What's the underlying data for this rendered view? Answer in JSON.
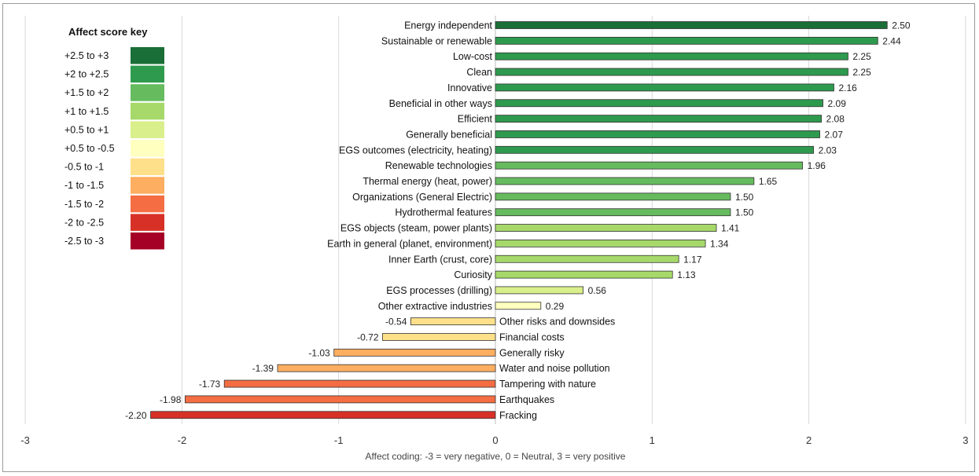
{
  "chart_data": {
    "type": "bar",
    "orientation": "horizontal",
    "xlabel": "Affect coding: -3 = very negative, 0 = Neutral, 3 = very positive",
    "xlim": [
      -3,
      3
    ],
    "xticks": [
      "-3",
      "-2",
      "-1",
      "0",
      "1",
      "2",
      "3"
    ],
    "grid": true,
    "categories": [
      "Energy independent",
      "Sustainable or renewable",
      "Low-cost",
      "Clean",
      "Innovative",
      "Beneficial in other ways",
      "Efficient",
      "Generally beneficial",
      "EGS outcomes (electricity, heating)",
      "Renewable technologies",
      "Thermal energy (heat, power)",
      "Organizations (General Electric)",
      "Hydrothermal features",
      "EGS objects (steam, power plants)",
      "Earth in general (planet, environment)",
      "Inner Earth (crust, core)",
      "Curiosity",
      "EGS processes (drilling)",
      "Other extractive industries",
      "Other risks and downsides",
      "Financial costs",
      "Generally risky",
      "Water and noise pollution",
      "Tampering with nature",
      "Earthquakes",
      "Fracking"
    ],
    "values": [
      2.5,
      2.44,
      2.25,
      2.25,
      2.16,
      2.09,
      2.08,
      2.07,
      2.03,
      1.96,
      1.65,
      1.5,
      1.5,
      1.41,
      1.34,
      1.17,
      1.13,
      0.56,
      0.29,
      -0.54,
      -0.72,
      -1.03,
      -1.39,
      -1.73,
      -1.98,
      -2.2
    ],
    "value_labels": [
      "2.50",
      "2.44",
      "2.25",
      "2.25",
      "2.16",
      "2.09",
      "2.08",
      "2.07",
      "2.03",
      "1.96",
      "1.65",
      "1.50",
      "1.50",
      "1.41",
      "1.34",
      "1.17",
      "1.13",
      "0.56",
      "0.29",
      "-0.54",
      "-0.72",
      "-1.03",
      "-1.39",
      "-1.73",
      "-1.98",
      "-2.20"
    ],
    "legend": {
      "title": "Affect score key",
      "placement": "top-left",
      "items": [
        {
          "label": "+2.5 to +3",
          "color": "#1a6e37"
        },
        {
          "label": "+2 to +2.5",
          "color": "#2e9a4e"
        },
        {
          "label": "+1.5 to +2",
          "color": "#66bb5f"
        },
        {
          "label": "+1 to +1.5",
          "color": "#a6d96a"
        },
        {
          "label": "+0.5 to +1",
          "color": "#d9ef8b"
        },
        {
          "label": "+0.5 to -0.5",
          "color": "#ffffbf"
        },
        {
          "label": "-0.5 to -1",
          "color": "#fee08b"
        },
        {
          "label": "-1 to -1.5",
          "color": "#fdae61"
        },
        {
          "label": "-1.5 to -2",
          "color": "#f46d43"
        },
        {
          "label": "-2 to -2.5",
          "color": "#d73027"
        },
        {
          "label": "-2.5 to -3",
          "color": "#a50026"
        }
      ]
    }
  }
}
